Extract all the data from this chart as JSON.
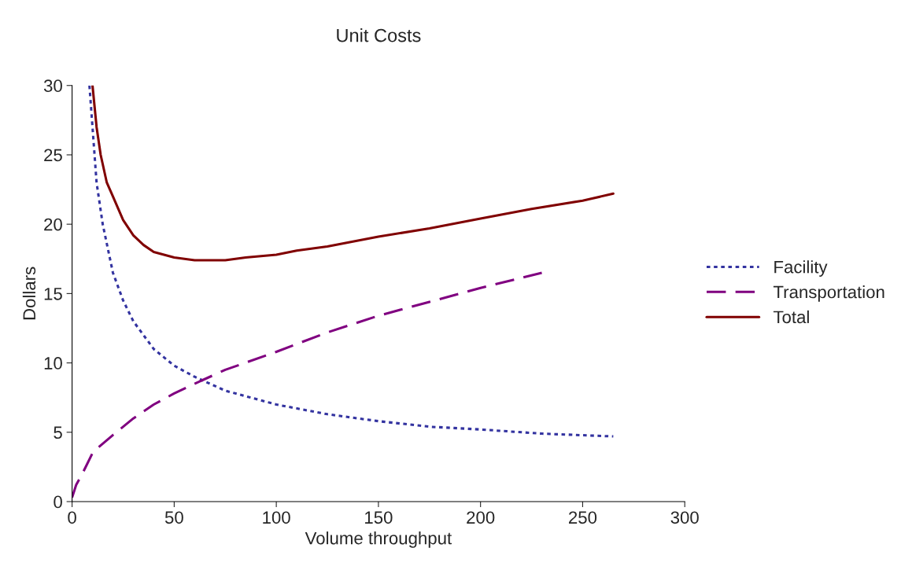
{
  "chart_data": {
    "type": "line",
    "title": "Unit Costs",
    "xlabel": "Volume throughput",
    "ylabel": "Dollars",
    "xlim": [
      0,
      300
    ],
    "xticks": [
      0,
      50,
      100,
      150,
      200,
      250,
      300
    ],
    "ylim": [
      0,
      30
    ],
    "yticks": [
      0,
      5,
      10,
      15,
      20,
      25,
      30
    ],
    "grid": false,
    "legend": "right",
    "marker": "none",
    "series": [
      {
        "name": "Facility",
        "color": "#3333a0",
        "line_style": "dotted",
        "x": [
          8.5,
          10,
          12,
          15,
          20,
          25,
          30,
          40,
          50,
          60,
          75,
          100,
          125,
          150,
          175,
          200,
          230,
          265
        ],
        "values": [
          30,
          27,
          23,
          20,
          16.5,
          14.5,
          13,
          11,
          9.8,
          9,
          8,
          7,
          6.3,
          5.8,
          5.4,
          5.2,
          4.9,
          4.7
        ]
      },
      {
        "name": "Transportation",
        "color": "#800080",
        "line_style": "dashed",
        "x": [
          0,
          2,
          5,
          10,
          12,
          20,
          30,
          40,
          50,
          60,
          75,
          100,
          125,
          150,
          175,
          200,
          230
        ],
        "values": [
          0.3,
          1.2,
          2,
          3.5,
          3.8,
          4.8,
          6,
          7,
          7.8,
          8.5,
          9.5,
          10.8,
          12.2,
          13.4,
          14.4,
          15.4,
          16.5
        ]
      },
      {
        "name": "Total",
        "color": "#800000",
        "line_style": "solid",
        "x": [
          10,
          12,
          14,
          17,
          20,
          25,
          30,
          35,
          40,
          50,
          60,
          75,
          85,
          100,
          110,
          125,
          150,
          175,
          200,
          225,
          250,
          265
        ],
        "values": [
          30,
          27,
          25,
          23,
          22,
          20.3,
          19.2,
          18.5,
          18,
          17.6,
          17.4,
          17.4,
          17.6,
          17.8,
          18.1,
          18.4,
          19.1,
          19.7,
          20.4,
          21.1,
          21.7,
          22.2
        ]
      }
    ]
  }
}
